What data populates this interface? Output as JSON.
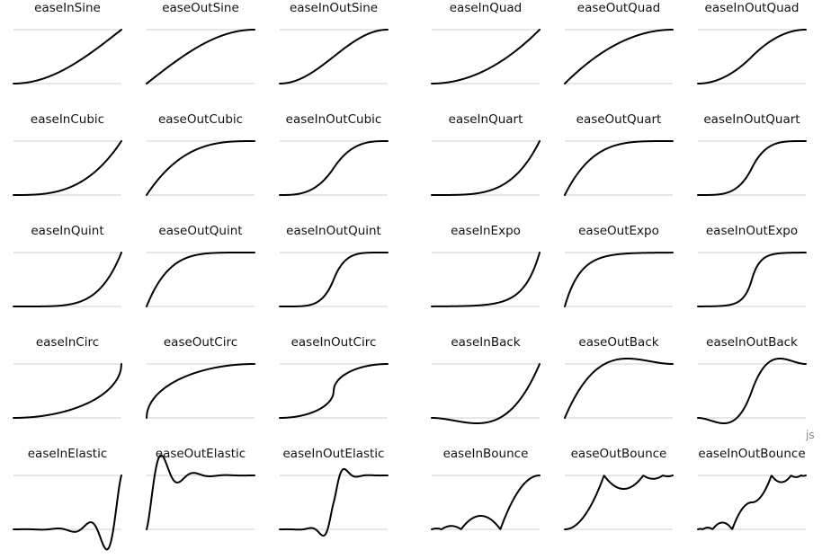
{
  "corner_label": "js",
  "chart_data": {
    "type": "line",
    "x_range": [
      0,
      1
    ],
    "y_range": [
      0,
      1
    ],
    "grid": false,
    "sample_count": 240,
    "functions": [
      {
        "id": "easeInSine",
        "title": "easeInSine"
      },
      {
        "id": "easeOutSine",
        "title": "easeOutSine"
      },
      {
        "id": "easeInOutSine",
        "title": "easeInOutSine"
      },
      {
        "id": "easeInQuad",
        "title": "easeInQuad"
      },
      {
        "id": "easeOutQuad",
        "title": "easeOutQuad"
      },
      {
        "id": "easeInOutQuad",
        "title": "easeInOutQuad"
      },
      {
        "id": "easeInCubic",
        "title": "easeInCubic"
      },
      {
        "id": "easeOutCubic",
        "title": "easeOutCubic"
      },
      {
        "id": "easeInOutCubic",
        "title": "easeInOutCubic"
      },
      {
        "id": "easeInQuart",
        "title": "easeInQuart"
      },
      {
        "id": "easeOutQuart",
        "title": "easeOutQuart"
      },
      {
        "id": "easeInOutQuart",
        "title": "easeInOutQuart"
      },
      {
        "id": "easeInQuint",
        "title": "easeInQuint"
      },
      {
        "id": "easeOutQuint",
        "title": "easeOutQuint"
      },
      {
        "id": "easeInOutQuint",
        "title": "easeInOutQuint"
      },
      {
        "id": "easeInExpo",
        "title": "easeInExpo"
      },
      {
        "id": "easeOutExpo",
        "title": "easeOutExpo"
      },
      {
        "id": "easeInOutExpo",
        "title": "easeInOutExpo"
      },
      {
        "id": "easeInCirc",
        "title": "easeInCirc"
      },
      {
        "id": "easeOutCirc",
        "title": "easeOutCirc"
      },
      {
        "id": "easeInOutCirc",
        "title": "easeInOutCirc"
      },
      {
        "id": "easeInBack",
        "title": "easeInBack"
      },
      {
        "id": "easeOutBack",
        "title": "easeOutBack"
      },
      {
        "id": "easeInOutBack",
        "title": "easeInOutBack"
      },
      {
        "id": "easeInElastic",
        "title": "easeInElastic"
      },
      {
        "id": "easeOutElastic",
        "title": "easeOutElastic"
      },
      {
        "id": "easeInOutElastic",
        "title": "easeInOutElastic"
      },
      {
        "id": "easeInBounce",
        "title": "easeInBounce"
      },
      {
        "id": "easeOutBounce",
        "title": "easeOutBounce"
      },
      {
        "id": "easeInOutBounce",
        "title": "easeInOutBounce"
      }
    ]
  }
}
